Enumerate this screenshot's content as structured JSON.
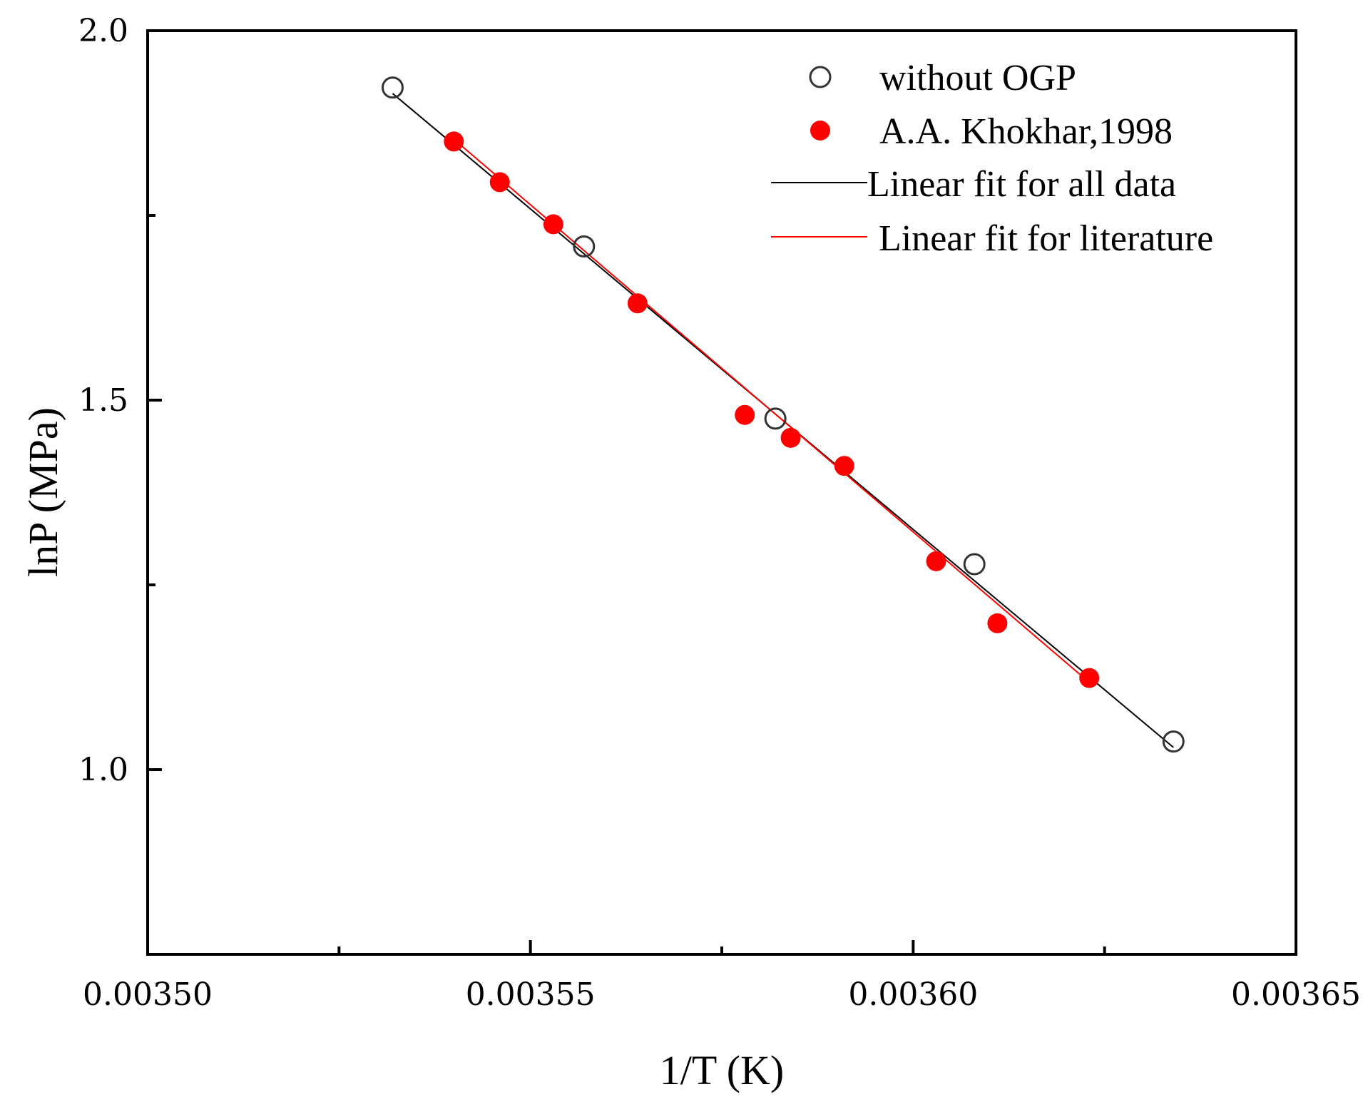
{
  "chart_data": {
    "type": "scatter",
    "title": "",
    "xlabel": "1/T (K)",
    "ylabel": "lnP (MPa)",
    "xlim": [
      0.0035,
      0.00365
    ],
    "ylim": [
      0.75,
      2.0
    ],
    "x_ticks": [
      0.0035,
      0.00355,
      0.0036,
      0.00365
    ],
    "x_tick_labels": [
      "0.00350",
      "0.00355",
      "0.00360",
      "0.00365"
    ],
    "x_minor_ticks": [
      0.003525,
      0.003575,
      0.003625
    ],
    "y_ticks": [
      1.0,
      1.5,
      2.0
    ],
    "y_tick_labels": [
      "1.0",
      "1.5",
      "2.0"
    ],
    "y_minor_ticks": [
      0.75,
      1.25,
      1.75
    ],
    "grid": false,
    "legend_position": "top-right",
    "series": [
      {
        "name": "without OGP",
        "kind": "scatter",
        "marker": "open-circle",
        "color": "#333333",
        "x": [
          0.003532,
          0.003557,
          0.003582,
          0.003608,
          0.003634
        ],
        "y": [
          1.923,
          1.708,
          1.475,
          1.278,
          1.038
        ]
      },
      {
        "name": "A.A. Khokhar,1998",
        "kind": "scatter",
        "marker": "filled-circle",
        "color": "#ff0000",
        "x": [
          0.00354,
          0.003546,
          0.003553,
          0.003564,
          0.003578,
          0.003584,
          0.003591,
          0.003603,
          0.003611,
          0.003623
        ],
        "y": [
          1.85,
          1.795,
          1.738,
          1.631,
          1.48,
          1.449,
          1.411,
          1.282,
          1.198,
          1.124
        ]
      },
      {
        "name": "Linear fit for all data",
        "kind": "line",
        "color": "#000000",
        "x": [
          0.003532,
          0.003634
        ],
        "y": [
          1.915,
          1.03
        ]
      },
      {
        "name": "Linear fit for literature",
        "kind": "line",
        "color": "#ff0000",
        "x": [
          0.00354,
          0.003623
        ],
        "y": [
          1.853,
          1.118
        ]
      }
    ]
  }
}
